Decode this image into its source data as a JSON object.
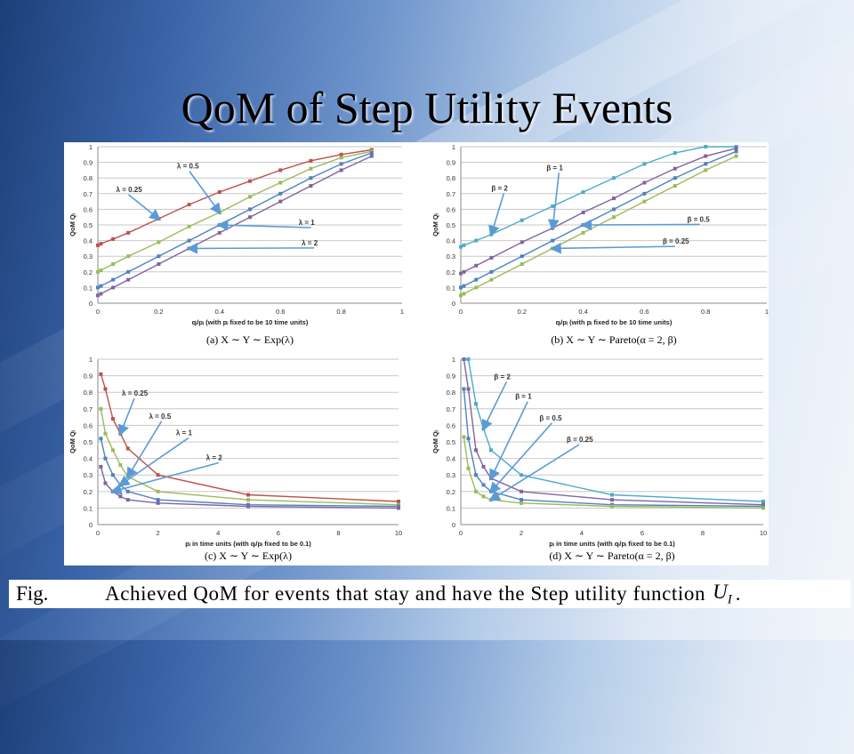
{
  "slide": {
    "title": "QoM of Step Utility Events",
    "caption": {
      "label": "Fig.",
      "text": "Achieved QoM for events that stay and have the Step utility function",
      "math_symbol": "U",
      "math_subscript": "I",
      "end": "."
    }
  },
  "colors": {
    "red": "#c0504d",
    "green": "#9bbb59",
    "blue": "#4f81bd",
    "purple": "#8064a2",
    "cyan": "#4bacc6",
    "arrow": "#5b9bd5"
  },
  "chart_data": [
    {
      "type": "line",
      "panel": "a",
      "caption": "(a) X ∼ Y ∼ Exp(λ)",
      "xlabel": "qᵢ/pᵢ (with pᵢ fixed to be 10 time units)",
      "ylabel": "QoM Qᵢ",
      "xlim": [
        0,
        1
      ],
      "ylim": [
        0,
        1
      ],
      "xticks": [
        "0",
        "0.2",
        "0.4",
        "0.6",
        "0.8",
        "1"
      ],
      "yticks": [
        "0",
        "0.1",
        "0.2",
        "0.3",
        "0.4",
        "0.5",
        "0.6",
        "0.7",
        "0.8",
        "0.9",
        "1"
      ],
      "grid": true,
      "x": [
        0,
        0.01,
        0.05,
        0.1,
        0.2,
        0.3,
        0.4,
        0.5,
        0.6,
        0.7,
        0.8,
        0.9
      ],
      "series": [
        {
          "name": "λ = 0.25",
          "color": "red",
          "values": [
            0.37,
            0.38,
            0.41,
            0.45,
            0.54,
            0.63,
            0.71,
            0.78,
            0.85,
            0.91,
            0.95,
            0.98
          ]
        },
        {
          "name": "λ = 0.5",
          "color": "green",
          "values": [
            0.2,
            0.21,
            0.25,
            0.3,
            0.39,
            0.49,
            0.58,
            0.68,
            0.77,
            0.86,
            0.93,
            0.97
          ]
        },
        {
          "name": "λ = 1",
          "color": "blue",
          "values": [
            0.1,
            0.11,
            0.15,
            0.2,
            0.3,
            0.4,
            0.5,
            0.6,
            0.7,
            0.8,
            0.89,
            0.96
          ]
        },
        {
          "name": "λ = 2",
          "color": "purple",
          "values": [
            0.05,
            0.06,
            0.1,
            0.15,
            0.25,
            0.35,
            0.45,
            0.55,
            0.65,
            0.75,
            0.85,
            0.94
          ]
        }
      ],
      "annotations": [
        {
          "text": "λ = 0.5",
          "series": 1,
          "point": 6,
          "label_at": [
            0.26,
            0.86
          ]
        },
        {
          "text": "λ = 0.25",
          "series": 0,
          "point": 4,
          "label_at": [
            0.06,
            0.71
          ]
        },
        {
          "text": "λ = 1",
          "series": 2,
          "point": 6,
          "label_at": [
            0.66,
            0.5
          ]
        },
        {
          "text": "λ = 2",
          "series": 3,
          "point": 5,
          "label_at": [
            0.67,
            0.37
          ]
        }
      ]
    },
    {
      "type": "line",
      "panel": "b",
      "caption": "(b) X ∼ Y ∼ Pareto(α = 2, β)",
      "xlabel": "qᵢ/pᵢ (with pᵢ fixed to be 10 time units)",
      "ylabel": "QoM Qᵢ",
      "xlim": [
        0,
        1
      ],
      "ylim": [
        0,
        1
      ],
      "xticks": [
        "0",
        "0.2",
        "0.4",
        "0.6",
        "0.8",
        "1"
      ],
      "yticks": [
        "0",
        "0.1",
        "0.2",
        "0.3",
        "0.4",
        "0.5",
        "0.6",
        "0.7",
        "0.8",
        "0.9",
        "1"
      ],
      "grid": true,
      "x": [
        0,
        0.01,
        0.05,
        0.1,
        0.2,
        0.3,
        0.4,
        0.5,
        0.6,
        0.7,
        0.8,
        0.9
      ],
      "series": [
        {
          "name": "β = 2",
          "color": "cyan",
          "values": [
            0.36,
            0.37,
            0.4,
            0.44,
            0.53,
            0.62,
            0.71,
            0.8,
            0.89,
            0.96,
            1.0,
            1.0
          ]
        },
        {
          "name": "β = 1",
          "color": "purple",
          "values": [
            0.19,
            0.2,
            0.24,
            0.29,
            0.39,
            0.48,
            0.58,
            0.67,
            0.77,
            0.86,
            0.94,
            0.99
          ]
        },
        {
          "name": "β = 0.5",
          "color": "blue",
          "values": [
            0.1,
            0.11,
            0.15,
            0.2,
            0.3,
            0.4,
            0.5,
            0.6,
            0.7,
            0.8,
            0.89,
            0.97
          ]
        },
        {
          "name": "β = 0.25",
          "color": "green",
          "values": [
            0.05,
            0.06,
            0.1,
            0.15,
            0.25,
            0.35,
            0.45,
            0.55,
            0.65,
            0.75,
            0.85,
            0.94
          ]
        }
      ],
      "annotations": [
        {
          "text": "β = 1",
          "series": 1,
          "point": 5,
          "label_at": [
            0.28,
            0.85
          ]
        },
        {
          "text": "β = 2",
          "series": 0,
          "point": 3,
          "label_at": [
            0.1,
            0.72
          ]
        },
        {
          "text": "β = 0.5",
          "series": 2,
          "point": 6,
          "label_at": [
            0.74,
            0.52
          ]
        },
        {
          "text": "β = 0.25",
          "series": 3,
          "point": 5,
          "label_at": [
            0.66,
            0.38
          ]
        }
      ]
    },
    {
      "type": "line",
      "panel": "c",
      "caption": "(c) X ∼ Y ∼ Exp(λ)",
      "xlabel": "pᵢ in time units (with qᵢ/pᵢ fixed to be 0.1)",
      "ylabel": "QoM Qᵢ",
      "xlim": [
        0,
        10
      ],
      "ylim": [
        0,
        1
      ],
      "xticks": [
        "0",
        "2",
        "4",
        "6",
        "8",
        "10"
      ],
      "yticks": [
        "0",
        "0.1",
        "0.2",
        "0.3",
        "0.4",
        "0.5",
        "0.6",
        "0.7",
        "0.8",
        "0.9",
        "1"
      ],
      "grid": true,
      "x": [
        0.1,
        0.25,
        0.5,
        0.75,
        1,
        2,
        5,
        10
      ],
      "series": [
        {
          "name": "λ = 0.25",
          "color": "red",
          "values": [
            0.91,
            0.82,
            0.64,
            0.55,
            0.46,
            0.3,
            0.18,
            0.14
          ]
        },
        {
          "name": "λ = 0.5",
          "color": "green",
          "values": [
            0.7,
            0.55,
            0.45,
            0.36,
            0.29,
            0.2,
            0.15,
            0.12
          ]
        },
        {
          "name": "λ = 1",
          "color": "blue",
          "values": [
            0.52,
            0.4,
            0.3,
            0.24,
            0.2,
            0.15,
            0.12,
            0.11
          ]
        },
        {
          "name": "λ = 2",
          "color": "purple",
          "values": [
            0.35,
            0.25,
            0.2,
            0.17,
            0.15,
            0.13,
            0.11,
            0.1
          ]
        }
      ],
      "annotations": [
        {
          "text": "λ = 0.25",
          "series": 0,
          "point": 3,
          "label_at": [
            0.8,
            0.78
          ]
        },
        {
          "text": "λ = 0.5",
          "series": 1,
          "point": 4,
          "label_at": [
            1.7,
            0.64
          ]
        },
        {
          "text": "λ = 1",
          "series": 2,
          "point": 3,
          "label_at": [
            2.6,
            0.54
          ]
        },
        {
          "text": "λ = 2",
          "series": 3,
          "point": 2,
          "label_at": [
            3.6,
            0.39
          ]
        }
      ]
    },
    {
      "type": "line",
      "panel": "d",
      "caption": "(d) X ∼ Y ∼ Pareto(α = 2, β)",
      "xlabel": "pᵢ in time units (with qᵢ/pᵢ fixed to be 0.1)",
      "ylabel": "QoM Qᵢ",
      "xlim": [
        0,
        10
      ],
      "ylim": [
        0,
        1
      ],
      "xticks": [
        "0",
        "2",
        "4",
        "6",
        "8",
        "10"
      ],
      "yticks": [
        "0",
        "0.1",
        "0.2",
        "0.3",
        "0.4",
        "0.5",
        "0.6",
        "0.7",
        "0.8",
        "0.9",
        "1"
      ],
      "grid": true,
      "x": [
        0.1,
        0.25,
        0.5,
        0.75,
        1,
        2,
        5,
        10
      ],
      "series": [
        {
          "name": "β = 2",
          "color": "cyan",
          "values": [
            1.0,
            1.0,
            0.73,
            0.58,
            0.45,
            0.3,
            0.18,
            0.14
          ]
        },
        {
          "name": "β = 1",
          "color": "purple",
          "values": [
            1.0,
            0.82,
            0.45,
            0.35,
            0.28,
            0.2,
            0.15,
            0.12
          ]
        },
        {
          "name": "β = 0.5",
          "color": "blue",
          "values": [
            0.82,
            0.52,
            0.3,
            0.24,
            0.2,
            0.15,
            0.12,
            0.11
          ]
        },
        {
          "name": "β = 0.25",
          "color": "green",
          "values": [
            0.53,
            0.34,
            0.2,
            0.17,
            0.15,
            0.13,
            0.11,
            0.1
          ]
        }
      ],
      "annotations": [
        {
          "text": "β = 2",
          "series": 0,
          "point": 3,
          "label_at": [
            1.1,
            0.88
          ]
        },
        {
          "text": "β = 1",
          "series": 1,
          "point": 4,
          "label_at": [
            1.8,
            0.76
          ]
        },
        {
          "text": "β = 0.5",
          "series": 2,
          "point": 4,
          "label_at": [
            2.6,
            0.63
          ]
        },
        {
          "text": "β = 0.25",
          "series": 3,
          "point": 4,
          "label_at": [
            3.5,
            0.5
          ]
        }
      ]
    }
  ]
}
